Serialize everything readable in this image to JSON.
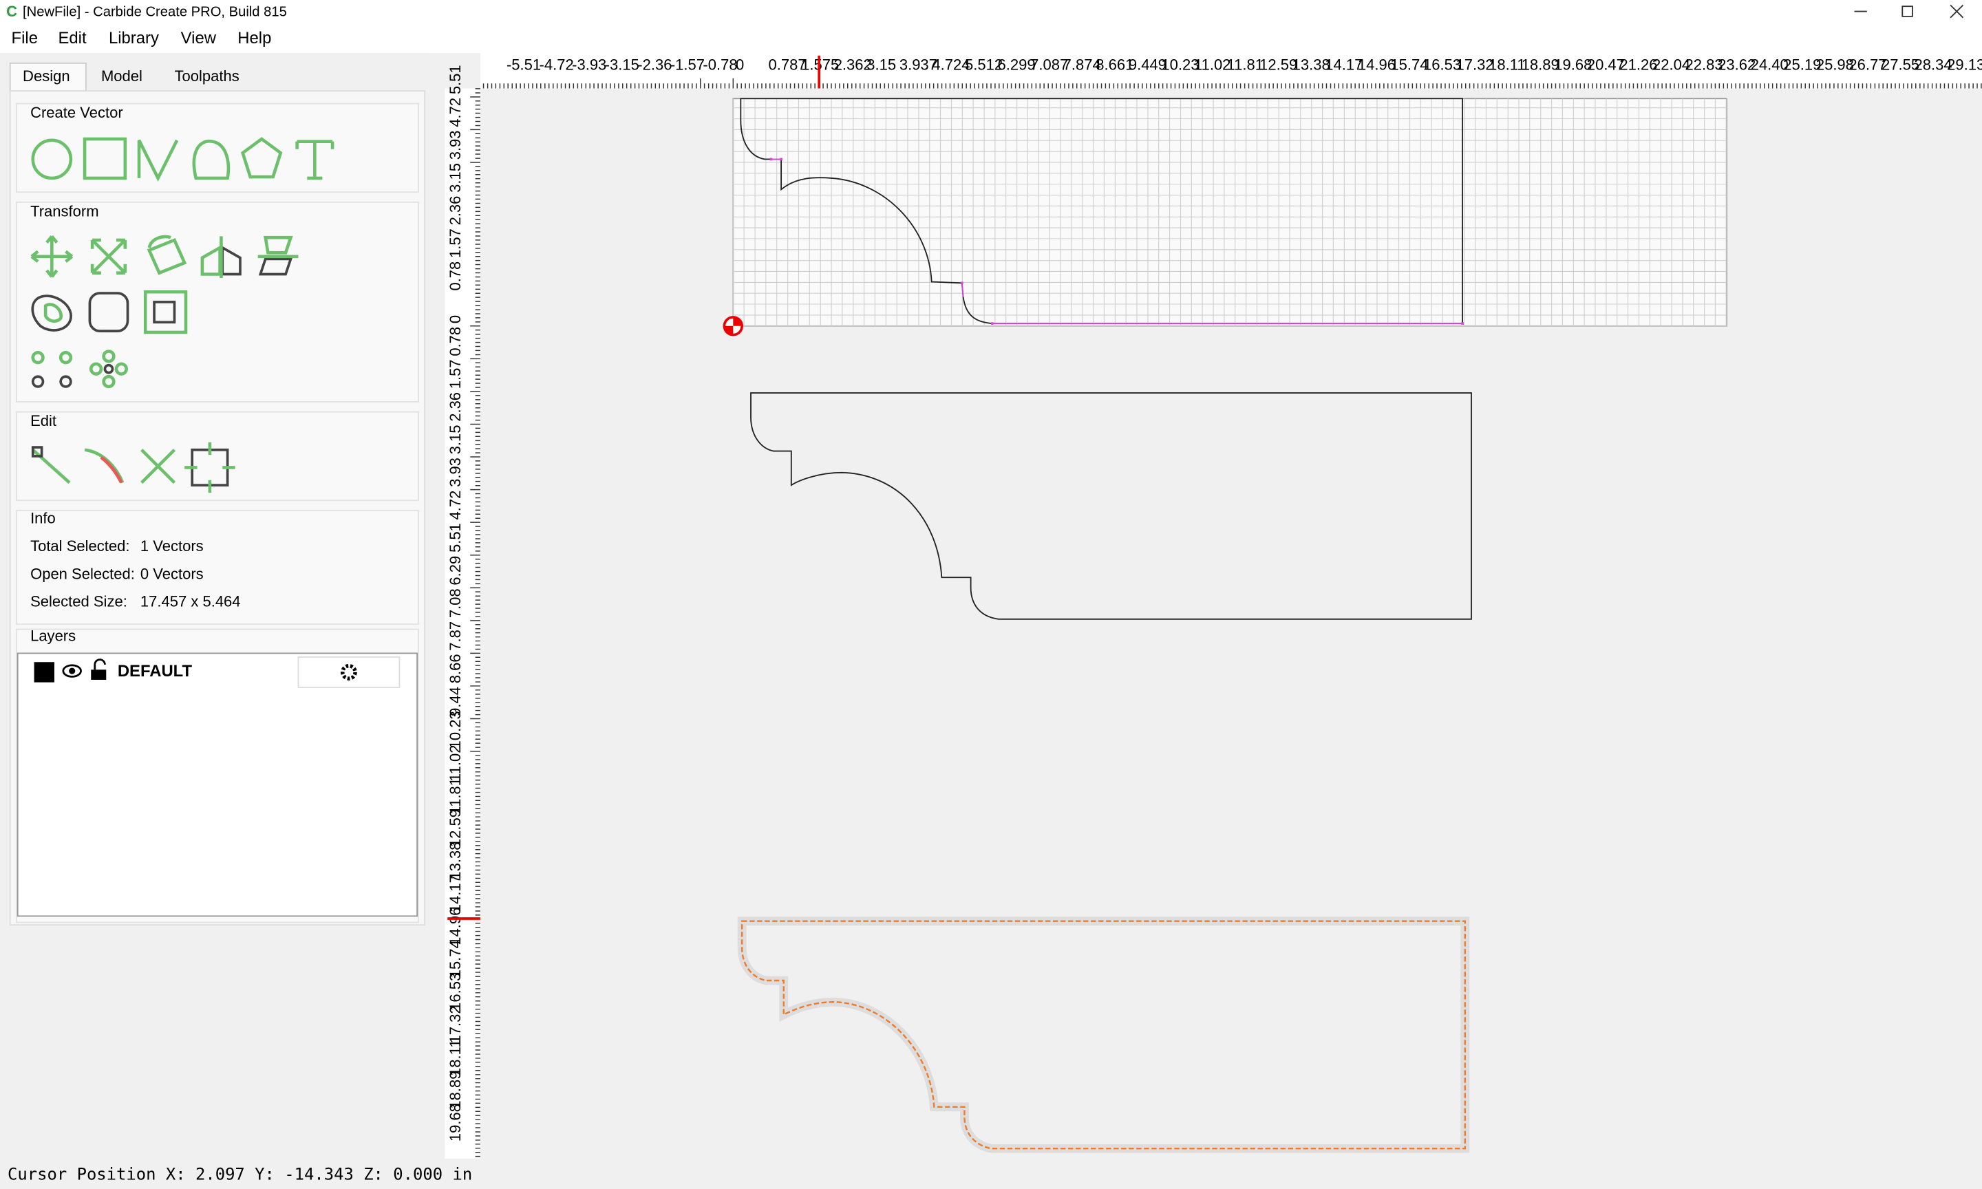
{
  "window": {
    "title": "[NewFile] - Carbide Create PRO, Build 815"
  },
  "menu": [
    "File",
    "Edit",
    "Library",
    "View",
    "Help"
  ],
  "tabs": [
    "Design",
    "Model",
    "Toolpaths"
  ],
  "sections": {
    "create_vector": "Create Vector",
    "transform": "Transform",
    "edit": "Edit",
    "info": "Info",
    "layers": "Layers"
  },
  "info": [
    {
      "label": "Total Selected:",
      "value": "1 Vectors"
    },
    {
      "label": "Open Selected:",
      "value": "0 Vectors"
    },
    {
      "label": "Selected Size:",
      "value": "17.457 x 5.464"
    }
  ],
  "layer": {
    "name": "DEFAULT"
  },
  "ruler_top": [
    "-5.51",
    "-4.72",
    "-3.93",
    "-3.15",
    "-2.36",
    "-1.57",
    "-0.78",
    "0",
    "0.787",
    "1.575",
    "2.362",
    "3.15",
    "3.937",
    "4.724",
    "5.512",
    "6.299",
    "7.087",
    "7.874",
    "8.661",
    "9.449",
    "10.23",
    "11.02",
    "11.81",
    "12.59",
    "13.38",
    "14.17",
    "14.96",
    "15.74",
    "16.53",
    "17.32",
    "18.11",
    "18.89",
    "19.68",
    "20.47",
    "21.26",
    "22.04",
    "22.83",
    "23.62",
    "24.40",
    "25.19",
    "25.98",
    "26.77",
    "27.55",
    "28.34",
    "29.13"
  ],
  "ruler_left": [
    "5.51",
    "4.72",
    "3.93",
    "3.15",
    "2.36",
    "1.57",
    "0.78",
    "0",
    "0.78",
    "1.57",
    "2.36",
    "3.15",
    "3.93",
    "4.72",
    "5.51",
    "6.29",
    "7.08",
    "7.87",
    "8.66",
    "9.44",
    "10.23",
    "11.02",
    "11.81",
    "12.59",
    "13.38",
    "14.17",
    "14.96",
    "15.74",
    "16.53",
    "17.32",
    "18.11",
    "18.89",
    "19.68"
  ],
  "status": "Cursor Position X: 2.097 Y: -14.343 Z: 0.000 in"
}
